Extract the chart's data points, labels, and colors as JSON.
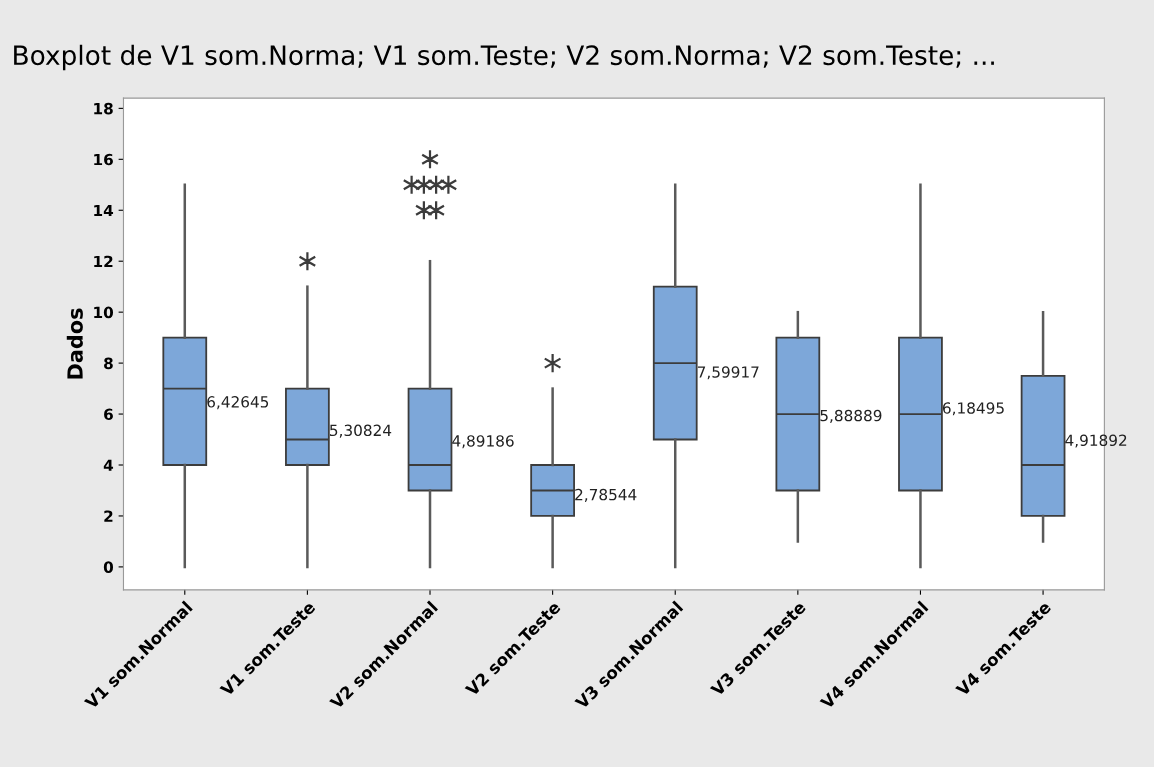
{
  "chart_data": {
    "type": "box",
    "title": "Boxplot de V1 som.Norma; V1 som.Teste; V2 som.Norma; V2 som.Teste; ...",
    "ylabel": "Dados",
    "categories": [
      "V1 som.Normal",
      "V1 som.Teste",
      "V2 som.Normal",
      "V2 som.Teste",
      "V3 som.Normal",
      "V3 som.Teste",
      "V4 som.Normal",
      "V4 som.Teste"
    ],
    "boxes": [
      {
        "low": 0,
        "q1": 4,
        "median": 7,
        "q3": 9,
        "high": 15
      },
      {
        "low": 0,
        "q1": 4,
        "median": 5,
        "q3": 7,
        "high": 11,
        "outliers": [
          12
        ]
      },
      {
        "low": 0,
        "q1": 3,
        "median": 4,
        "q3": 7,
        "high": 12,
        "outliers": [
          14,
          14,
          15,
          15,
          15,
          15,
          16
        ]
      },
      {
        "low": 0,
        "q1": 2,
        "median": 3,
        "q3": 4,
        "high": 7,
        "outliers": [
          8
        ]
      },
      {
        "low": 0,
        "q1": 5,
        "median": 8,
        "q3": 11,
        "high": 15
      },
      {
        "low": 1,
        "q1": 3,
        "median": 6,
        "q3": 9,
        "high": 10
      },
      {
        "low": 0,
        "q1": 3,
        "median": 6,
        "q3": 9,
        "high": 15
      },
      {
        "low": 1,
        "q1": 2,
        "median": 4,
        "q3": 7.5,
        "high": 10
      }
    ],
    "annotations": [
      "6,42645",
      "5,30824",
      "4,89186",
      "2,78544",
      "7,59917",
      "5,88889",
      "6,18495",
      "4,91892"
    ],
    "color": "#7da7d9",
    "marker": "star",
    "grid": false,
    "legend": false,
    "ylim": [
      -0.9,
      18.4
    ],
    "yticks": [
      0,
      2,
      4,
      6,
      8,
      10,
      12,
      14,
      16,
      18
    ]
  }
}
